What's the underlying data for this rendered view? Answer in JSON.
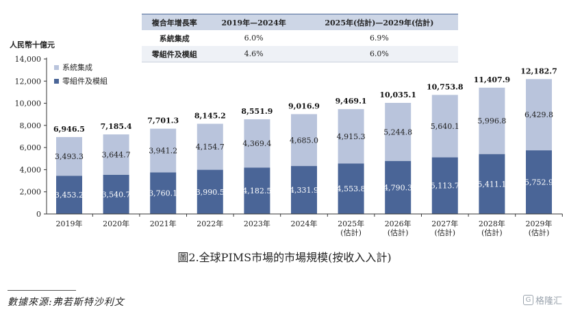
{
  "cagr_table": {
    "headers": [
      "複合年增長率",
      "2019年—2024年",
      "2025年(估計)—2029年(估計)"
    ],
    "rows": [
      [
        "系統集成",
        "6.0%",
        "6.9%"
      ],
      [
        "零組件及模組",
        "4.6%",
        "6.0%"
      ]
    ]
  },
  "caption": "圖2.全球PIMS市場的市場規模(按收入入計)",
  "source": "數據來源:弗若斯特沙利文",
  "watermark": "格隆汇",
  "chart_data": {
    "type": "bar",
    "stacked": true,
    "ylabel": "人民幣十億元",
    "ylim": [
      0,
      14000
    ],
    "yticks": [
      0,
      2000,
      4000,
      6000,
      8000,
      10000,
      12000,
      14000
    ],
    "ytick_labels": [
      "0",
      "2,000",
      "4,000",
      "6,000",
      "8,000",
      "10,000",
      "12,000",
      "14,000"
    ],
    "grid": false,
    "legend_position": "top-left",
    "categories": [
      "2019年",
      "2020年",
      "2021年",
      "2022年",
      "2023年",
      "2024年",
      "2025年",
      "2026年",
      "2027年",
      "2028年",
      "2029年"
    ],
    "category_sublabels": [
      "",
      "",
      "",
      "",
      "",
      "",
      "(估計)",
      "(估計)",
      "(估計)",
      "(估計)",
      "(估計)"
    ],
    "series": [
      {
        "name": "零組件及模組",
        "color": "#4a6597",
        "values": [
          3453.2,
          3540.7,
          3760.1,
          3990.5,
          4182.5,
          4331.9,
          4553.8,
          4790.3,
          5113.7,
          5411.1,
          5752.9
        ],
        "labels": [
          "3,453.2",
          "3,540.7",
          "3,760.1",
          "3,990.5",
          "4,182.5",
          "4,331.9",
          "4,553.8",
          "4,790.3",
          "5,113.7",
          "5,411.1",
          "5,752.9"
        ]
      },
      {
        "name": "系統集成",
        "color": "#b9c4dc",
        "values": [
          3493.3,
          3644.7,
          3941.2,
          4154.7,
          4369.4,
          4685.0,
          4915.3,
          5244.8,
          5640.1,
          5996.8,
          6429.8
        ],
        "labels": [
          "3,493.3",
          "3,644.7",
          "3,941.2",
          "4,154.7",
          "4,369.4",
          "4,685.0",
          "4,915.3",
          "5,244.8",
          "5,640.1",
          "5,996.8",
          "6,429.8"
        ]
      }
    ],
    "totals": [
      6946.5,
      7185.4,
      7701.3,
      8145.2,
      8551.9,
      9016.9,
      9469.1,
      10035.1,
      10753.8,
      11407.9,
      12182.7
    ],
    "total_labels": [
      "6,946.5",
      "7,185.4",
      "7,701.3",
      "8,145.2",
      "8,551.9",
      "9,016.9",
      "9,469.1",
      "10,035.1",
      "10,753.8",
      "11,407.9",
      "12,182.7"
    ]
  }
}
